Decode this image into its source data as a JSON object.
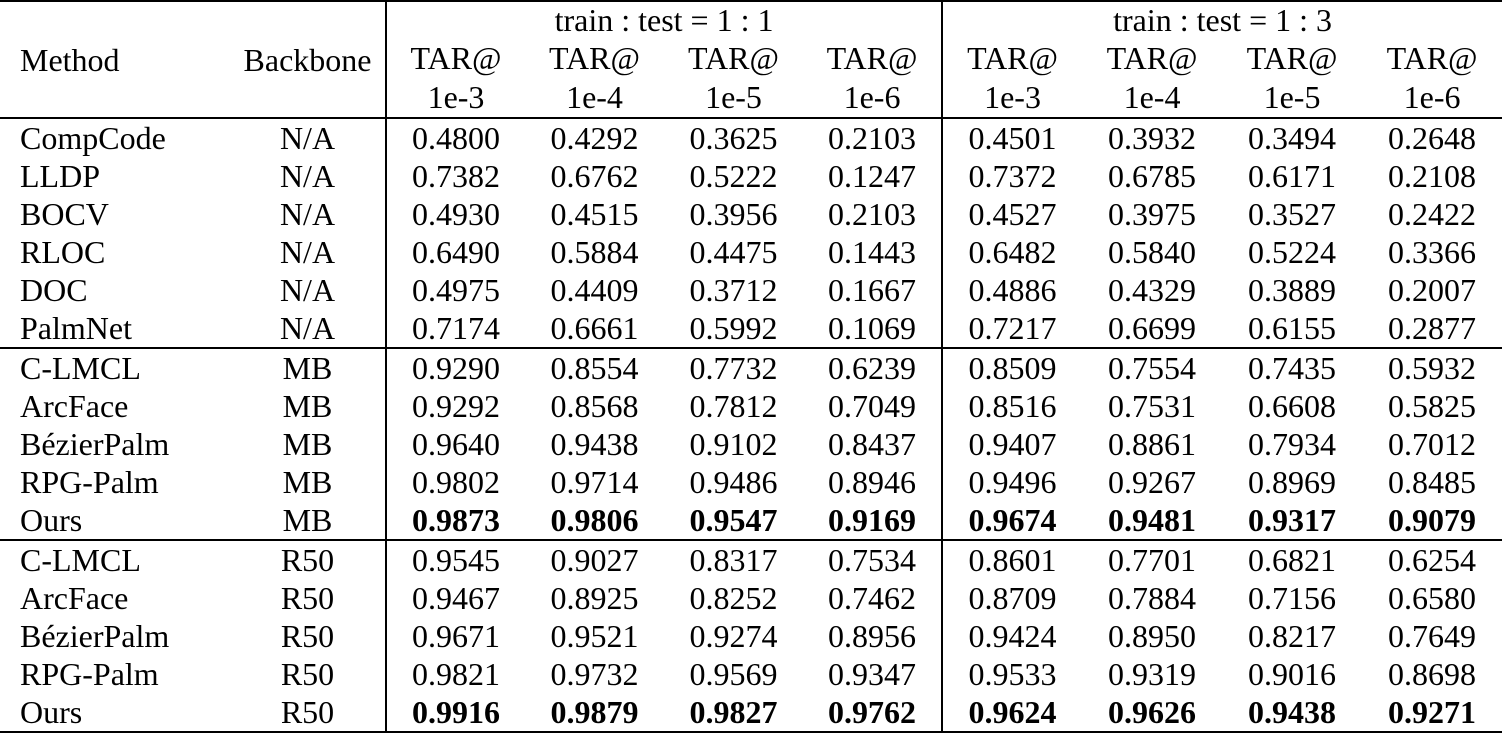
{
  "page": {
    "background_color": "#ffffff",
    "text_color": "#000000"
  },
  "table": {
    "headers": {
      "method": "Method",
      "backbone": "Backbone",
      "group_1_label": "train : test = 1 : 1",
      "group_2_label": "train : test = 1 : 3",
      "metric_label": "TAR@",
      "thresholds": [
        "1e-3",
        "1e-4",
        "1e-5",
        "1e-6"
      ]
    },
    "groups": [
      {
        "rows": [
          {
            "method": "CompCode",
            "backbone": "N/A",
            "bold": false,
            "tt11": [
              "0.4800",
              "0.4292",
              "0.3625",
              "0.2103"
            ],
            "tt13": [
              "0.4501",
              "0.3932",
              "0.3494",
              "0.2648"
            ]
          },
          {
            "method": "LLDP",
            "backbone": "N/A",
            "bold": false,
            "tt11": [
              "0.7382",
              "0.6762",
              "0.5222",
              "0.1247"
            ],
            "tt13": [
              "0.7372",
              "0.6785",
              "0.6171",
              "0.2108"
            ]
          },
          {
            "method": "BOCV",
            "backbone": "N/A",
            "bold": false,
            "tt11": [
              "0.4930",
              "0.4515",
              "0.3956",
              "0.2103"
            ],
            "tt13": [
              "0.4527",
              "0.3975",
              "0.3527",
              "0.2422"
            ]
          },
          {
            "method": "RLOC",
            "backbone": "N/A",
            "bold": false,
            "tt11": [
              "0.6490",
              "0.5884",
              "0.4475",
              "0.1443"
            ],
            "tt13": [
              "0.6482",
              "0.5840",
              "0.5224",
              "0.3366"
            ]
          },
          {
            "method": "DOC",
            "backbone": "N/A",
            "bold": false,
            "tt11": [
              "0.4975",
              "0.4409",
              "0.3712",
              "0.1667"
            ],
            "tt13": [
              "0.4886",
              "0.4329",
              "0.3889",
              "0.2007"
            ]
          },
          {
            "method": "PalmNet",
            "backbone": "N/A",
            "bold": false,
            "tt11": [
              "0.7174",
              "0.6661",
              "0.5992",
              "0.1069"
            ],
            "tt13": [
              "0.7217",
              "0.6699",
              "0.6155",
              "0.2877"
            ]
          }
        ]
      },
      {
        "rows": [
          {
            "method": "C-LMCL",
            "backbone": "MB",
            "bold": false,
            "tt11": [
              "0.9290",
              "0.8554",
              "0.7732",
              "0.6239"
            ],
            "tt13": [
              "0.8509",
              "0.7554",
              "0.7435",
              "0.5932"
            ]
          },
          {
            "method": "ArcFace",
            "backbone": "MB",
            "bold": false,
            "tt11": [
              "0.9292",
              "0.8568",
              "0.7812",
              "0.7049"
            ],
            "tt13": [
              "0.8516",
              "0.7531",
              "0.6608",
              "0.5825"
            ]
          },
          {
            "method": "BézierPalm",
            "backbone": "MB",
            "bold": false,
            "tt11": [
              "0.9640",
              "0.9438",
              "0.9102",
              "0.8437"
            ],
            "tt13": [
              "0.9407",
              "0.8861",
              "0.7934",
              "0.7012"
            ]
          },
          {
            "method": "RPG-Palm",
            "backbone": "MB",
            "bold": false,
            "tt11": [
              "0.9802",
              "0.9714",
              "0.9486",
              "0.8946"
            ],
            "tt13": [
              "0.9496",
              "0.9267",
              "0.8969",
              "0.8485"
            ]
          },
          {
            "method": "Ours",
            "backbone": "MB",
            "bold": true,
            "tt11": [
              "0.9873",
              "0.9806",
              "0.9547",
              "0.9169"
            ],
            "tt13": [
              "0.9674",
              "0.9481",
              "0.9317",
              "0.9079"
            ]
          }
        ]
      },
      {
        "rows": [
          {
            "method": "C-LMCL",
            "backbone": "R50",
            "bold": false,
            "tt11": [
              "0.9545",
              "0.9027",
              "0.8317",
              "0.7534"
            ],
            "tt13": [
              "0.8601",
              "0.7701",
              "0.6821",
              "0.6254"
            ]
          },
          {
            "method": "ArcFace",
            "backbone": "R50",
            "bold": false,
            "tt11": [
              "0.9467",
              "0.8925",
              "0.8252",
              "0.7462"
            ],
            "tt13": [
              "0.8709",
              "0.7884",
              "0.7156",
              "0.6580"
            ]
          },
          {
            "method": "BézierPalm",
            "backbone": "R50",
            "bold": false,
            "tt11": [
              "0.9671",
              "0.9521",
              "0.9274",
              "0.8956"
            ],
            "tt13": [
              "0.9424",
              "0.8950",
              "0.8217",
              "0.7649"
            ]
          },
          {
            "method": "RPG-Palm",
            "backbone": "R50",
            "bold": false,
            "tt11": [
              "0.9821",
              "0.9732",
              "0.9569",
              "0.9347"
            ],
            "tt13": [
              "0.9533",
              "0.9319",
              "0.9016",
              "0.8698"
            ]
          },
          {
            "method": "Ours",
            "backbone": "R50",
            "bold": true,
            "tt11": [
              "0.9916",
              "0.9879",
              "0.9827",
              "0.9762"
            ],
            "tt13": [
              "0.9624",
              "0.9626",
              "0.9438",
              "0.9271"
            ]
          }
        ]
      }
    ]
  }
}
